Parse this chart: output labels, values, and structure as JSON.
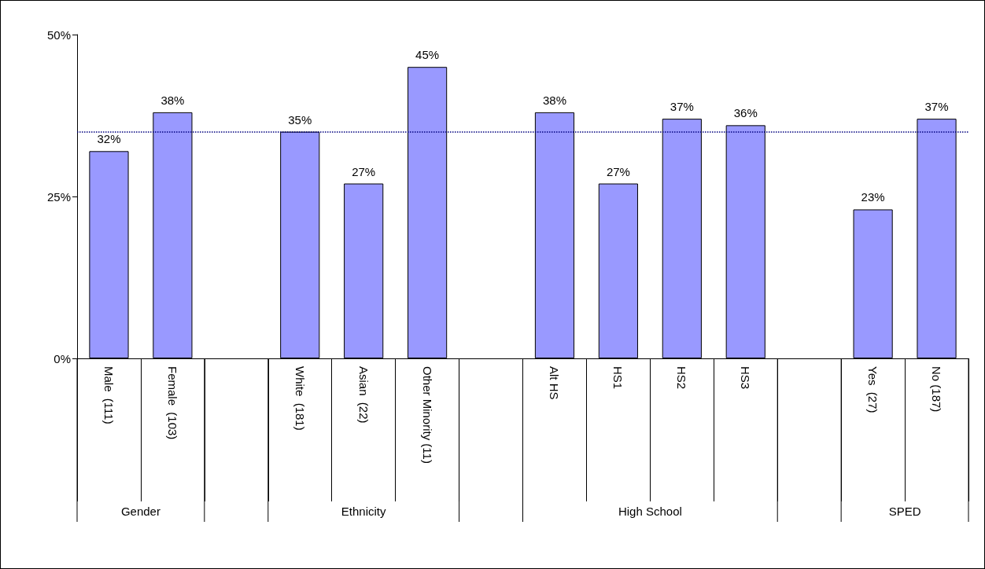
{
  "chart_data": {
    "type": "bar",
    "categories": [
      "Male  (111)",
      "Female  (103)",
      null,
      "White  (181)",
      "Asian  (22)",
      "Other Minority (11)",
      null,
      "Alt HS",
      "HS1",
      "HS2",
      "HS3",
      null,
      "Yes  (27)",
      "No (187)"
    ],
    "values": [
      32,
      38,
      null,
      35,
      27,
      45,
      null,
      38,
      27,
      37,
      36,
      null,
      23,
      37
    ],
    "value_labels": [
      "32%",
      "38%",
      null,
      "35%",
      "27%",
      "45%",
      null,
      "38%",
      "27%",
      "37%",
      "36%",
      null,
      "23%",
      "37%"
    ],
    "color": "#9999ff",
    "ylim": [
      0,
      50
    ],
    "yticks": [
      {
        "value": 0,
        "label": "0%"
      },
      {
        "value": 25,
        "label": "25%"
      },
      {
        "value": 50,
        "label": "50%"
      }
    ],
    "grid": false,
    "ref_lines": [
      {
        "axis": "y",
        "value": 35,
        "color": "#000080",
        "line_style": "dotted"
      }
    ],
    "annotations": [
      "Gender",
      "Ethnicity",
      "High School",
      "SPED"
    ]
  }
}
